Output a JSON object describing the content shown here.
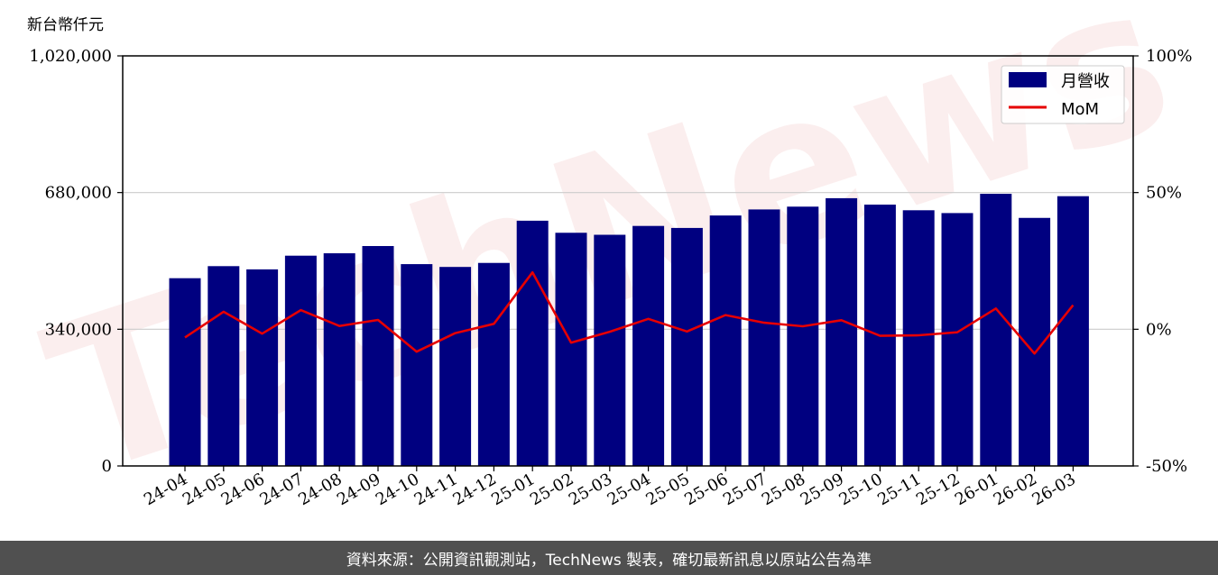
{
  "unit_label": "新台幣仟元",
  "watermark": "TechNews",
  "footer_text": "資料來源：公開資訊觀測站，TechNews 製表，確切最新訊息以原站公告為準",
  "colors": {
    "bar": "#000080",
    "line": "#e60000",
    "grid": "#cccccc",
    "footer_bg": "#505050"
  },
  "chart_data": {
    "type": "bar",
    "categories": [
      "24-04",
      "24-05",
      "24-06",
      "24-07",
      "24-08",
      "24-09",
      "24-10",
      "24-11",
      "24-12",
      "25-01",
      "25-02",
      "25-03",
      "25-04",
      "25-05",
      "25-06",
      "25-07",
      "25-08",
      "25-09",
      "25-10",
      "25-11",
      "25-12",
      "26-01",
      "26-02",
      "26-03"
    ],
    "series": [
      {
        "name": "月營收",
        "type": "bar",
        "axis": "left",
        "values": [
          467000,
          497000,
          489000,
          523000,
          529000,
          547000,
          502000,
          495000,
          505000,
          610000,
          580000,
          575000,
          597000,
          592000,
          623000,
          638000,
          645000,
          666000,
          650000,
          636000,
          629000,
          677000,
          617000,
          671000
        ]
      },
      {
        "name": "MoM",
        "type": "line",
        "axis": "right",
        "values": [
          -3.0,
          6.4,
          -1.6,
          7.0,
          1.2,
          3.4,
          -8.2,
          -1.4,
          2.0,
          20.8,
          -4.9,
          -0.9,
          3.8,
          -0.8,
          5.2,
          2.4,
          1.1,
          3.3,
          -2.4,
          -2.2,
          -1.1,
          7.6,
          -8.9,
          8.8
        ]
      }
    ],
    "yticks_left": [
      "0",
      "340,000",
      "680,000",
      "1,020,000"
    ],
    "yticks_right": [
      "-50%",
      "0%",
      "50%",
      "100%"
    ],
    "ylim_left": [
      0,
      1020000
    ],
    "ylim_right": [
      -50,
      100
    ],
    "grid": "horizontal",
    "legend_position": "top-right"
  }
}
